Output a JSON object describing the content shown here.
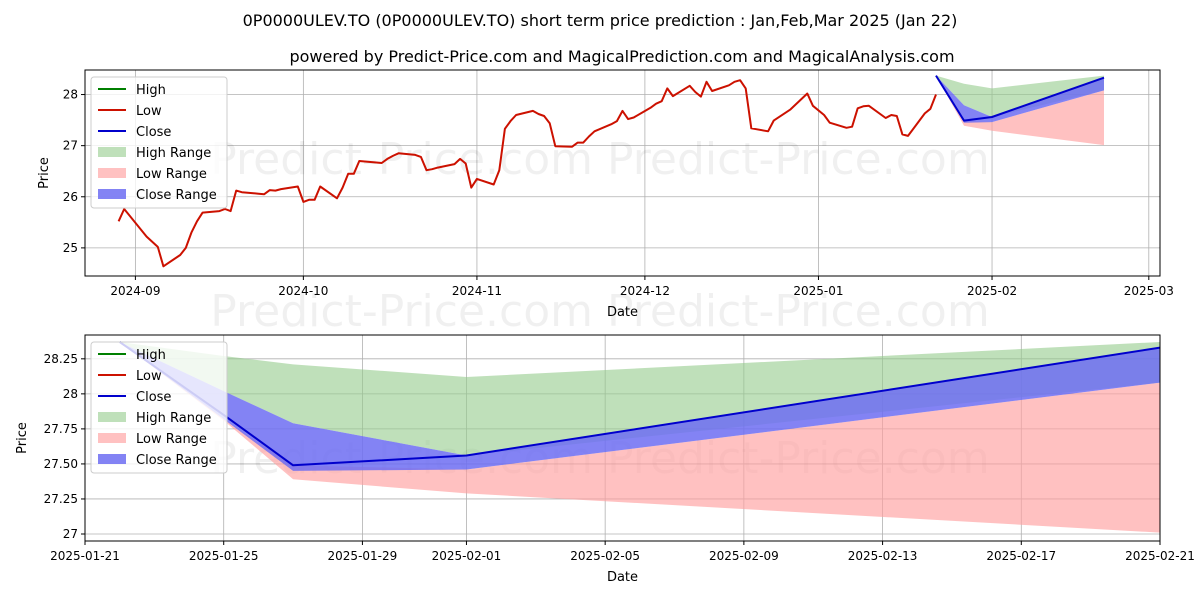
{
  "title_line1": "0P0000ULEV.TO (0P0000ULEV.TO) short term price prediction : Jan,Feb,Mar 2025 (Jan 22)",
  "title_line2": "powered by Predict-Price.com and MagicalPrediction.com and MagicalAnalysis.com",
  "watermark": "Predict-Price.com",
  "colors": {
    "high": "#007f00",
    "low": "#cc1100",
    "close": "#0000cc",
    "high_range": "#95cc8c",
    "low_range": "#ff9f9f",
    "close_range": "#6d6df2",
    "grid": "#b0b0b0"
  },
  "chart_data": [
    {
      "type": "line",
      "xlabel": "Date",
      "ylabel": "Price",
      "grid": true,
      "legend_position": "top-left",
      "xlim": [
        "2024-08-23",
        "2025-03-03"
      ],
      "ylim": [
        24.45,
        28.48
      ],
      "x_ticks": [
        "2024-09",
        "2024-10",
        "2024-11",
        "2024-12",
        "2025-01",
        "2025-02",
        "2025-03"
      ],
      "x_tick_dates": [
        "2024-09-01",
        "2024-10-01",
        "2024-11-01",
        "2024-12-01",
        "2025-01-01",
        "2025-02-01",
        "2025-03-01"
      ],
      "y_ticks": [
        25,
        26,
        27,
        28
      ],
      "legend": [
        "High",
        "Low",
        "Close",
        "High Range",
        "Low Range",
        "Close Range"
      ],
      "history": {
        "x": [
          "2024-08-29",
          "2024-08-30",
          "2024-09-03",
          "2024-09-05",
          "2024-09-06",
          "2024-09-09",
          "2024-09-10",
          "2024-09-11",
          "2024-09-12",
          "2024-09-13",
          "2024-09-16",
          "2024-09-17",
          "2024-09-18",
          "2024-09-19",
          "2024-09-20",
          "2024-09-23",
          "2024-09-24",
          "2024-09-25",
          "2024-09-26",
          "2024-09-27",
          "2024-09-30",
          "2024-10-01",
          "2024-10-02",
          "2024-10-03",
          "2024-10-04",
          "2024-10-07",
          "2024-10-08",
          "2024-10-09",
          "2024-10-10",
          "2024-10-11",
          "2024-10-15",
          "2024-10-16",
          "2024-10-17",
          "2024-10-18",
          "2024-10-21",
          "2024-10-22",
          "2024-10-23",
          "2024-10-24",
          "2024-10-25",
          "2024-10-28",
          "2024-10-29",
          "2024-10-30",
          "2024-10-31",
          "2024-11-01",
          "2024-11-04",
          "2024-11-05",
          "2024-11-06",
          "2024-11-07",
          "2024-11-08",
          "2024-11-11",
          "2024-11-12",
          "2024-11-13",
          "2024-11-14",
          "2024-11-15",
          "2024-11-18",
          "2024-11-19",
          "2024-11-20",
          "2024-11-21",
          "2024-11-22",
          "2024-11-25",
          "2024-11-26",
          "2024-11-27",
          "2024-11-28",
          "2024-11-29",
          "2024-12-02",
          "2024-12-03",
          "2024-12-04",
          "2024-12-05",
          "2024-12-06",
          "2024-12-09",
          "2024-12-10",
          "2024-12-11",
          "2024-12-12",
          "2024-12-13",
          "2024-12-16",
          "2024-12-17",
          "2024-12-18",
          "2024-12-19",
          "2024-12-20",
          "2024-12-23",
          "2024-12-24",
          "2024-12-27",
          "2024-12-30",
          "2024-12-31",
          "2025-01-02",
          "2025-01-03",
          "2025-01-06",
          "2025-01-07",
          "2025-01-08",
          "2025-01-09",
          "2025-01-10",
          "2025-01-13",
          "2025-01-14",
          "2025-01-15",
          "2025-01-16",
          "2025-01-17",
          "2025-01-20",
          "2025-01-21",
          "2025-01-22"
        ],
        "low": [
          25.52,
          25.76,
          25.22,
          25.02,
          24.64,
          24.86,
          25.0,
          25.3,
          25.52,
          25.69,
          25.72,
          25.76,
          25.72,
          26.12,
          26.09,
          26.06,
          26.05,
          26.13,
          26.12,
          26.15,
          26.2,
          25.9,
          25.94,
          25.94,
          26.2,
          25.97,
          26.18,
          26.45,
          26.45,
          26.7,
          26.66,
          26.74,
          26.8,
          26.85,
          26.82,
          26.78,
          26.52,
          26.54,
          26.57,
          26.64,
          26.74,
          26.65,
          26.18,
          26.35,
          26.24,
          26.52,
          27.33,
          27.48,
          27.6,
          27.68,
          27.62,
          27.58,
          27.44,
          26.99,
          26.98,
          27.06,
          27.06,
          27.18,
          27.28,
          27.42,
          27.48,
          27.68,
          27.52,
          27.55,
          27.74,
          27.82,
          27.87,
          28.12,
          27.97,
          28.17,
          28.05,
          27.96,
          28.25,
          28.07,
          28.18,
          28.25,
          28.28,
          28.12,
          27.34,
          27.28,
          27.49,
          27.71,
          28.02,
          27.78,
          27.6,
          27.45,
          27.35,
          27.37,
          27.73,
          27.77,
          27.78,
          27.54,
          27.6,
          27.58,
          27.22,
          27.19,
          27.63,
          27.72,
          28.0
        ]
      },
      "prediction": {
        "x": [
          "2025-01-22",
          "2025-01-27",
          "2025-02-01",
          "2025-02-21"
        ],
        "high_upper": [
          28.37,
          28.21,
          28.12,
          28.37
        ],
        "high_lower": [
          28.37,
          27.79,
          27.56,
          28.08
        ],
        "low_upper": [
          28.37,
          27.49,
          27.46,
          28.08
        ],
        "low_lower": [
          28.37,
          27.39,
          27.29,
          27.01
        ],
        "close_upper": [
          28.37,
          27.79,
          27.56,
          28.33
        ],
        "close_lower": [
          28.37,
          27.45,
          27.46,
          28.08
        ],
        "close": [
          28.37,
          27.49,
          27.56,
          28.33
        ]
      }
    },
    {
      "type": "line",
      "xlabel": "Date",
      "ylabel": "Price",
      "grid": true,
      "legend_position": "top-left",
      "xlim": [
        "2025-01-21",
        "2025-02-21"
      ],
      "ylim": [
        26.95,
        28.42
      ],
      "x_ticks": [
        "2025-01-21",
        "2025-01-25",
        "2025-01-29",
        "2025-02-01",
        "2025-02-05",
        "2025-02-09",
        "2025-02-13",
        "2025-02-17",
        "2025-02-21"
      ],
      "x_tick_dates": [
        "2025-01-21",
        "2025-01-25",
        "2025-01-29",
        "2025-02-01",
        "2025-02-05",
        "2025-02-09",
        "2025-02-13",
        "2025-02-17",
        "2025-02-21"
      ],
      "y_ticks": [
        27.0,
        27.25,
        27.5,
        27.75,
        28.0,
        28.25
      ],
      "legend": [
        "High",
        "Low",
        "Close",
        "High Range",
        "Low Range",
        "Close Range"
      ],
      "prediction": {
        "x": [
          "2025-01-22",
          "2025-01-25",
          "2025-01-27",
          "2025-02-01",
          "2025-02-21"
        ],
        "high_upper": [
          28.37,
          28.27,
          28.21,
          28.12,
          28.37
        ],
        "high_lower": [
          28.37,
          28.02,
          27.79,
          27.56,
          28.08
        ],
        "low_upper": [
          28.37,
          27.82,
          27.49,
          27.46,
          28.08
        ],
        "low_lower": [
          28.37,
          27.81,
          27.39,
          27.29,
          27.01
        ],
        "close_upper": [
          28.37,
          28.02,
          27.79,
          27.56,
          28.33
        ],
        "close_lower": [
          28.37,
          27.82,
          27.45,
          27.46,
          28.08
        ],
        "close": [
          28.37,
          27.85,
          27.49,
          27.56,
          28.33
        ]
      }
    }
  ]
}
